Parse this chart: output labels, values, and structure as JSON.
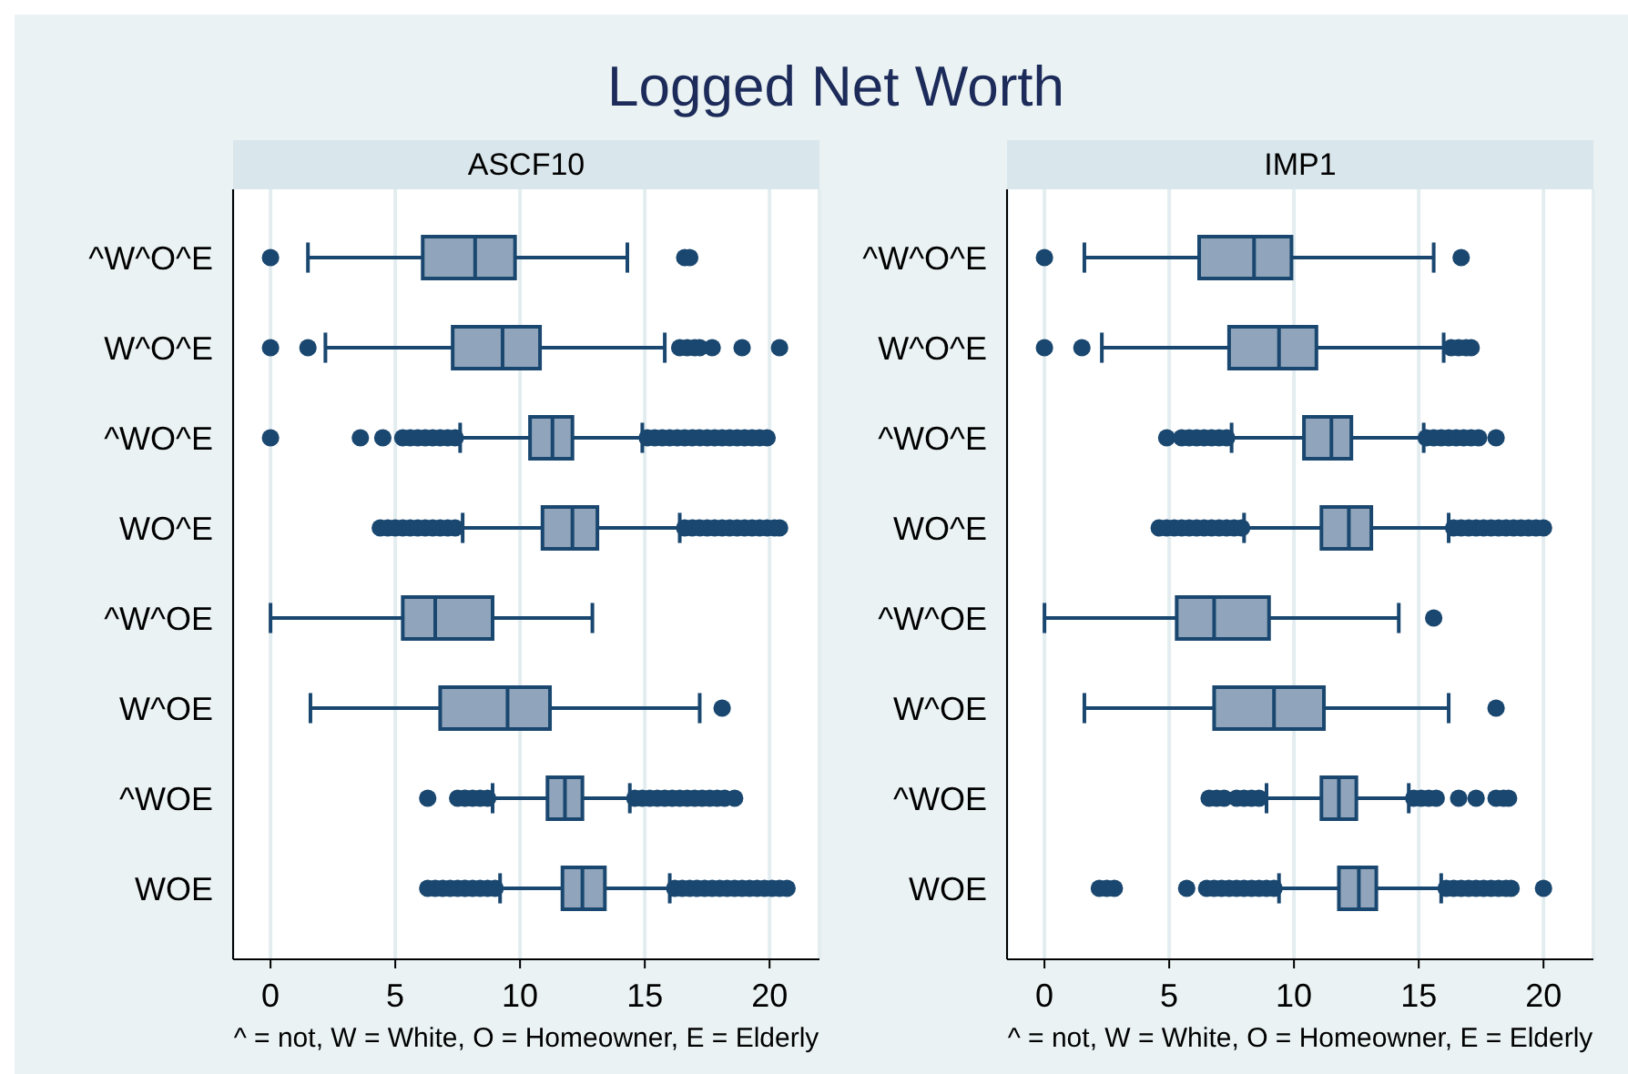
{
  "chart_data": [
    {
      "type": "other",
      "title": "Logged Net Worth"
    },
    {
      "type": "box",
      "title": "ASCF10",
      "xlabel": "^ = not, W = White, O = Homeowner, E = Elderly",
      "orientation": "horizontal",
      "color": "#90a5bb",
      "grid": "x",
      "xlim": [
        -1.5,
        22
      ],
      "xticks": [
        0,
        5,
        10,
        15,
        20
      ],
      "categories": [
        "^W^O^E",
        "W^O^E",
        "^WO^E",
        "WO^E",
        "^W^OE",
        "W^OE",
        "^WOE",
        "WOE"
      ],
      "boxes": [
        {
          "low": 1.5,
          "q1": 6.1,
          "median": 8.2,
          "q3": 9.8,
          "high": 14.3,
          "outliers": [
            0,
            16.6,
            16.8
          ]
        },
        {
          "low": 2.2,
          "q1": 7.3,
          "median": 9.3,
          "q3": 10.8,
          "high": 15.8,
          "outliers": [
            0,
            1.5,
            16.4,
            16.7,
            17.0,
            17.2,
            17.7,
            18.9,
            20.4
          ]
        },
        {
          "low": 7.6,
          "q1": 10.4,
          "median": 11.3,
          "q3": 12.1,
          "high": 14.9,
          "outliers": [
            0,
            3.6,
            4.5,
            5.3,
            5.6,
            5.9,
            6.2,
            6.5,
            6.8,
            7.1,
            7.4,
            15.1,
            15.4,
            15.7,
            16.0,
            16.3,
            16.6,
            16.9,
            17.2,
            17.5,
            17.8,
            18.1,
            18.4,
            18.7,
            19.0,
            19.3,
            19.6,
            19.9
          ]
        },
        {
          "low": 7.7,
          "q1": 10.9,
          "median": 12.1,
          "q3": 13.1,
          "high": 16.4,
          "outliers": [
            4.4,
            4.7,
            5.0,
            5.3,
            5.6,
            5.9,
            6.2,
            6.5,
            6.8,
            7.1,
            7.4,
            16.6,
            16.9,
            17.2,
            17.5,
            17.8,
            18.1,
            18.4,
            18.7,
            19.0,
            19.3,
            19.6,
            19.9,
            20.2,
            20.4
          ]
        },
        {
          "low": 0,
          "q1": 5.3,
          "median": 6.6,
          "q3": 8.9,
          "high": 12.9
        },
        {
          "low": 1.6,
          "q1": 6.8,
          "median": 9.5,
          "q3": 11.2,
          "high": 17.2,
          "outliers": [
            18.1
          ]
        },
        {
          "low": 8.9,
          "q1": 11.1,
          "median": 11.8,
          "q3": 12.5,
          "high": 14.4,
          "outliers": [
            6.3,
            7.5,
            7.8,
            8.1,
            8.4,
            8.7,
            14.6,
            14.9,
            15.2,
            15.5,
            15.8,
            16.1,
            16.4,
            16.7,
            17.0,
            17.3,
            17.6,
            17.9,
            18.2,
            18.6
          ]
        },
        {
          "low": 9.2,
          "q1": 11.7,
          "median": 12.5,
          "q3": 13.4,
          "high": 16.0,
          "outliers": [
            6.3,
            6.6,
            6.9,
            7.2,
            7.5,
            7.8,
            8.1,
            8.4,
            8.7,
            9.0,
            16.2,
            16.5,
            16.8,
            17.1,
            17.4,
            17.7,
            18.0,
            18.3,
            18.6,
            18.9,
            19.2,
            19.5,
            19.8,
            20.1,
            20.4,
            20.7
          ]
        }
      ]
    },
    {
      "type": "box",
      "title": "IMP1",
      "xlabel": "^ = not, W = White, O = Homeowner, E = Elderly",
      "orientation": "horizontal",
      "color": "#90a5bb",
      "grid": "x",
      "xlim": [
        -1.5,
        22
      ],
      "xticks": [
        0,
        5,
        10,
        15,
        20
      ],
      "categories": [
        "^W^O^E",
        "W^O^E",
        "^WO^E",
        "WO^E",
        "^W^OE",
        "W^OE",
        "^WOE",
        "WOE"
      ],
      "boxes": [
        {
          "low": 1.6,
          "q1": 6.2,
          "median": 8.4,
          "q3": 9.9,
          "high": 15.6,
          "outliers": [
            0,
            16.7
          ]
        },
        {
          "low": 2.3,
          "q1": 7.4,
          "median": 9.4,
          "q3": 10.9,
          "high": 16.0,
          "outliers": [
            0,
            1.5,
            16.3,
            16.6,
            16.9,
            17.1
          ]
        },
        {
          "low": 7.5,
          "q1": 10.4,
          "median": 11.5,
          "q3": 12.3,
          "high": 15.2,
          "outliers": [
            4.9,
            5.5,
            5.8,
            6.1,
            6.4,
            6.7,
            7.0,
            7.3,
            15.3,
            15.6,
            15.9,
            16.2,
            16.5,
            16.8,
            17.1,
            17.4,
            18.1
          ]
        },
        {
          "low": 8.0,
          "q1": 11.1,
          "median": 12.2,
          "q3": 13.1,
          "high": 16.2,
          "outliers": [
            4.6,
            4.9,
            5.2,
            5.5,
            5.8,
            6.1,
            6.4,
            6.7,
            7.0,
            7.3,
            7.6,
            7.9,
            16.4,
            16.7,
            17.0,
            17.3,
            17.6,
            17.9,
            18.2,
            18.5,
            18.8,
            19.1,
            19.4,
            19.7,
            20.0
          ]
        },
        {
          "low": 0,
          "q1": 5.3,
          "median": 6.8,
          "q3": 9.0,
          "high": 14.2,
          "outliers": [
            15.6
          ]
        },
        {
          "low": 1.6,
          "q1": 6.8,
          "median": 9.2,
          "q3": 11.2,
          "high": 16.2,
          "outliers": [
            18.1
          ]
        },
        {
          "low": 8.9,
          "q1": 11.1,
          "median": 11.8,
          "q3": 12.5,
          "high": 14.6,
          "outliers": [
            6.6,
            6.9,
            7.2,
            7.7,
            8.0,
            8.3,
            8.6,
            14.8,
            15.1,
            15.4,
            15.7,
            16.6,
            17.3,
            18.1,
            18.4,
            18.6
          ]
        },
        {
          "low": 9.4,
          "q1": 11.8,
          "median": 12.6,
          "q3": 13.3,
          "high": 15.9,
          "outliers": [
            2.2,
            2.5,
            2.8,
            5.7,
            6.5,
            6.8,
            7.1,
            7.4,
            7.7,
            8.0,
            8.3,
            8.6,
            8.9,
            9.2,
            16.1,
            16.4,
            16.7,
            17.0,
            17.3,
            17.6,
            17.9,
            18.2,
            18.5,
            18.7,
            20.0
          ]
        }
      ]
    }
  ]
}
